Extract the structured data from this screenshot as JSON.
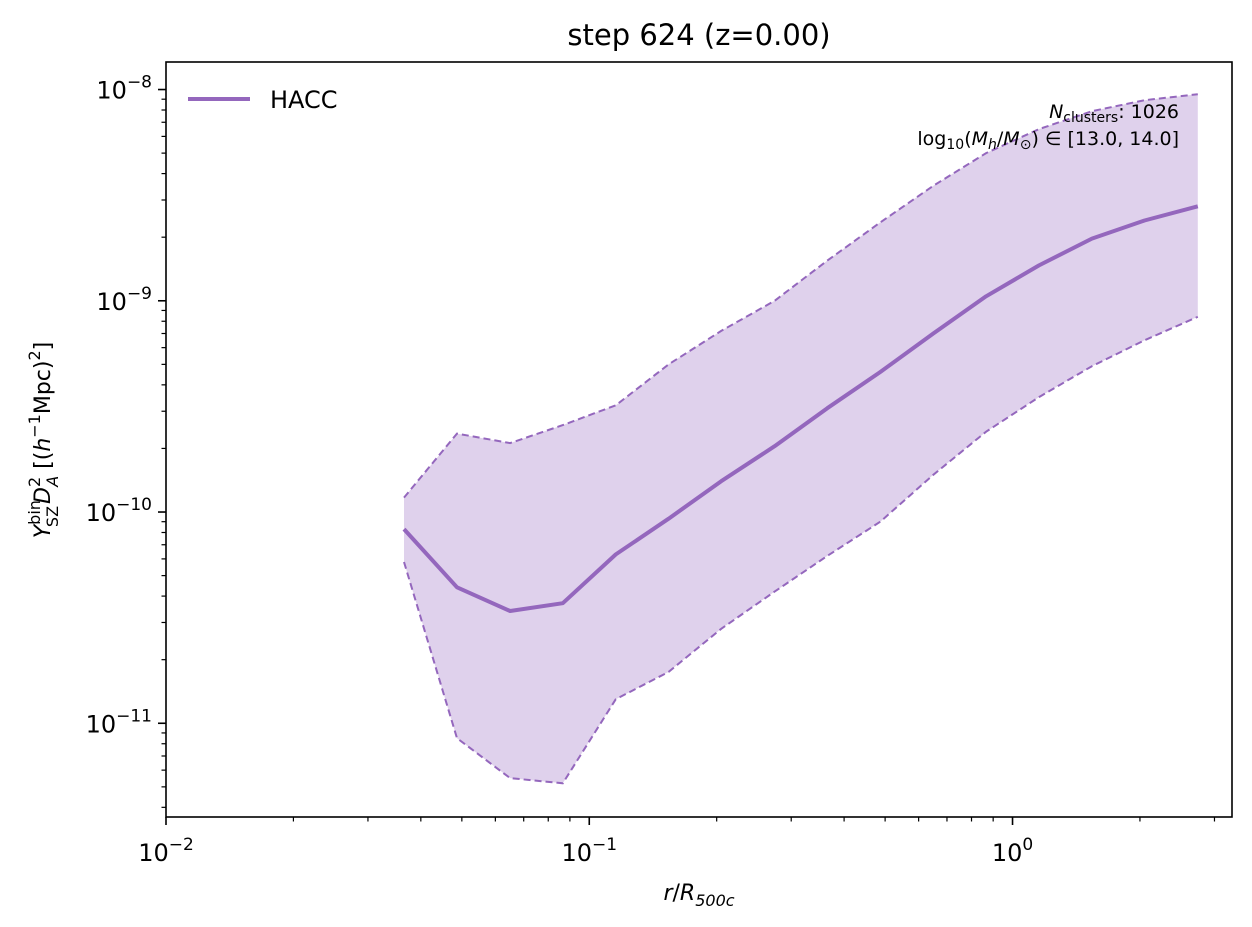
{
  "chart_data": {
    "type": "line",
    "title": "step 624 (z=0.00)",
    "xlabel": {
      "var": "r",
      "slash": "/",
      "R": "R",
      "sub": "500c"
    },
    "ylabel": {
      "Y": "Y",
      "sup": "bin",
      "sub": "SZ",
      "D": "D",
      "D_sup": "2",
      "D_sub": "A",
      "unit_open": " [(",
      "h": "h",
      "h_sup": "−1",
      "unit_mid": "Mpc)",
      "unit_sup": "2",
      "unit_close": "]"
    },
    "xscale": "log",
    "yscale": "log",
    "xlim": [
      0.01,
      3.3
    ],
    "ylim": [
      3.6e-12,
      1.35e-08
    ],
    "x_ticks": [
      {
        "value": 0.01,
        "base": "10",
        "exp": "−2"
      },
      {
        "value": 0.1,
        "base": "10",
        "exp": "−1"
      },
      {
        "value": 1,
        "base": "10",
        "exp": "0"
      }
    ],
    "y_ticks": [
      {
        "value": 1e-11,
        "base": "10",
        "exp": "−11"
      },
      {
        "value": 1e-10,
        "base": "10",
        "exp": "−10"
      },
      {
        "value": 1e-09,
        "base": "10",
        "exp": "−9"
      },
      {
        "value": 1e-08,
        "base": "10",
        "exp": "−8"
      }
    ],
    "series": [
      {
        "name": "HACC",
        "color": "#9467bd",
        "fill_color": "#dfd1ec",
        "x": [
          0.0365,
          0.0487,
          0.065,
          0.0866,
          0.1155,
          0.154,
          0.205,
          0.274,
          0.365,
          0.487,
          0.65,
          0.866,
          1.155,
          1.54,
          2.05,
          2.74
        ],
        "median": [
          8.3e-11,
          4.4e-11,
          3.4e-11,
          3.7e-11,
          6.3e-11,
          9.3e-11,
          1.4e-10,
          2.05e-10,
          3.1e-10,
          4.6e-10,
          7e-10,
          1.05e-09,
          1.47e-09,
          1.97e-09,
          2.4e-09,
          2.8e-09
        ],
        "upper": [
          1.17e-10,
          2.35e-10,
          2.12e-10,
          2.58e-10,
          3.2e-10,
          5e-10,
          7.2e-10,
          1e-09,
          1.55e-09,
          2.35e-09,
          3.5e-09,
          5e-09,
          6.5e-09,
          7.9e-09,
          8.9e-09,
          9.5e-09
        ],
        "lower": [
          5.8e-11,
          8.5e-12,
          5.5e-12,
          5.2e-12,
          1.3e-11,
          1.75e-11,
          2.8e-11,
          4.2e-11,
          6.2e-11,
          9e-11,
          1.5e-10,
          2.4e-10,
          3.5e-10,
          4.9e-10,
          6.5e-10,
          8.4e-10
        ]
      }
    ],
    "legend": {
      "label": "HACC",
      "position": "top-left"
    },
    "annotation": {
      "n_label_var": "N",
      "n_label_sub": "clusters",
      "n_label_suffix": ": 1026",
      "mass_prefix": "log",
      "mass_prefix_sub": "10",
      "mass_open": "(",
      "mass_M": "M",
      "mass_M_sub": "h",
      "mass_slash": "/",
      "mass_M2": "M",
      "mass_M2_sub": "⊙",
      "mass_close": ") ∈ [13.0, 14.0]"
    },
    "grid": false
  }
}
